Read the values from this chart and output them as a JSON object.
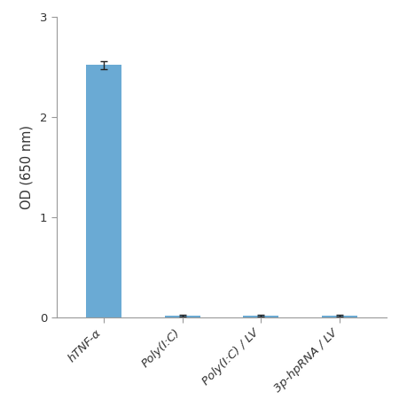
{
  "categories": [
    "hTNF-α",
    "Poly(I:C)",
    "Poly(I:C) / LV",
    "3p-hpRNA / LV"
  ],
  "values": [
    2.52,
    0.02,
    0.02,
    0.02
  ],
  "errors": [
    0.04,
    0.006,
    0.006,
    0.006
  ],
  "bar_color": "#6aaad4",
  "bar_edge_color": "#6aaad4",
  "error_color": "#222222",
  "ylabel": "OD (650 nm)",
  "ylim": [
    0,
    3
  ],
  "yticks": [
    0,
    1,
    2,
    3
  ],
  "background_color": "#ffffff",
  "bar_width": 0.45,
  "tick_label_fontsize": 9.5,
  "ylabel_fontsize": 10.5,
  "axis_color": "#999999",
  "capsize": 3
}
